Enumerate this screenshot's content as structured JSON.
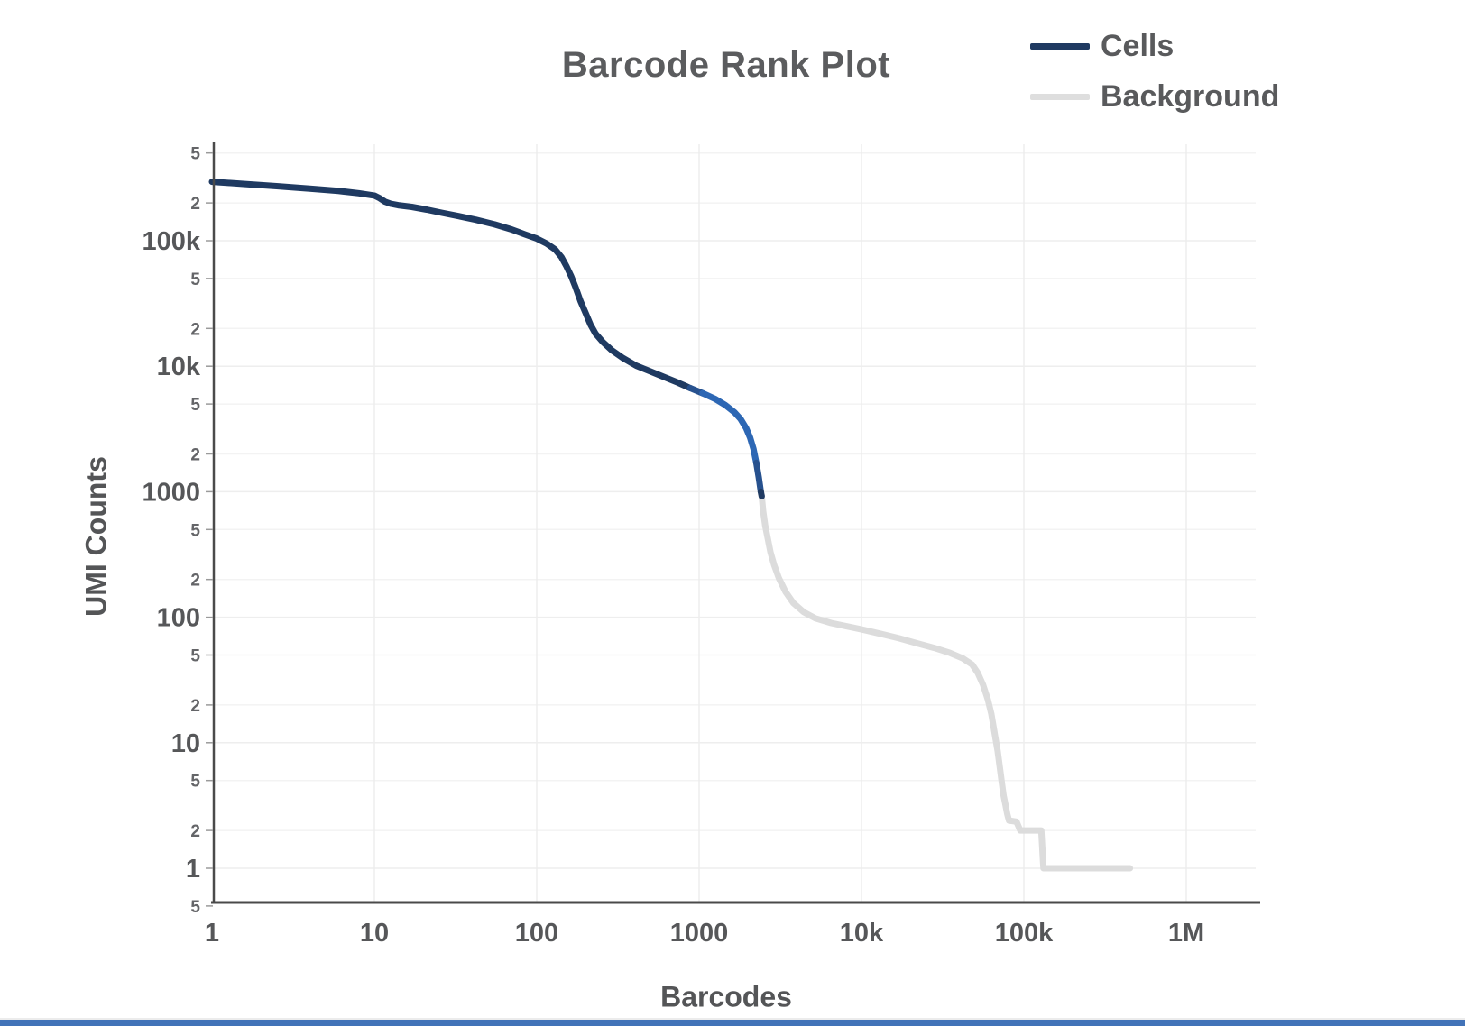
{
  "chart_data": {
    "type": "line",
    "title": "Barcode Rank Plot",
    "xlabel": "Barcodes",
    "ylabel": "UMI Counts",
    "x_scale": "log",
    "y_scale": "log",
    "x_range": [
      1,
      2600000
    ],
    "y_range": [
      0.5,
      590000
    ],
    "grid": {
      "h_minor_color": "#f3f3f3",
      "h_major_color": "#eeeeee",
      "v_color": "#ededed",
      "axis_color": "#4a4a4a",
      "tick_color": "#9a9a9a"
    },
    "legend": [
      {
        "label": "Cells",
        "color": "#1f3a61"
      },
      {
        "label": "Background",
        "color": "#dedede"
      }
    ],
    "x_ticks": [
      {
        "value": 1,
        "label": "1"
      },
      {
        "value": 10,
        "label": "10"
      },
      {
        "value": 100,
        "label": "100"
      },
      {
        "value": 1000,
        "label": "1000"
      },
      {
        "value": 10000,
        "label": "10k"
      },
      {
        "value": 100000,
        "label": "100k"
      },
      {
        "value": 1000000,
        "label": "1M"
      }
    ],
    "y_ticks": [
      {
        "value": 500000,
        "label": "5",
        "minor": true
      },
      {
        "value": 200000,
        "label": "2",
        "minor": true
      },
      {
        "value": 100000,
        "label": "100k",
        "minor": false
      },
      {
        "value": 50000,
        "label": "5",
        "minor": true
      },
      {
        "value": 20000,
        "label": "2",
        "minor": true
      },
      {
        "value": 10000,
        "label": "10k",
        "minor": false
      },
      {
        "value": 5000,
        "label": "5",
        "minor": true
      },
      {
        "value": 2000,
        "label": "2",
        "minor": true
      },
      {
        "value": 1000,
        "label": "1000",
        "minor": false
      },
      {
        "value": 500,
        "label": "5",
        "minor": true
      },
      {
        "value": 200,
        "label": "2",
        "minor": true
      },
      {
        "value": 100,
        "label": "100",
        "minor": false
      },
      {
        "value": 50,
        "label": "5",
        "minor": true
      },
      {
        "value": 20,
        "label": "2",
        "minor": true
      },
      {
        "value": 10,
        "label": "10",
        "minor": false
      },
      {
        "value": 5,
        "label": "5",
        "minor": true
      },
      {
        "value": 2,
        "label": "2",
        "minor": true
      },
      {
        "value": 1,
        "label": "1",
        "minor": false
      },
      {
        "value": 0.5,
        "label": "5",
        "minor": true
      }
    ],
    "series": [
      {
        "name": "Cells",
        "line_width": 7,
        "segments": [
          {
            "to_rank": 760,
            "color": "#1f3a61"
          },
          {
            "to_rank": 1050,
            "color": "#27518e"
          },
          {
            "to_rank": 2180,
            "color": "#2d67b4"
          },
          {
            "to_rank": 2340,
            "color": "#27518e"
          },
          {
            "to_rank": 2430,
            "color": "#203a61"
          }
        ],
        "points": [
          [
            1,
            295000
          ],
          [
            1.6,
            283000
          ],
          [
            2.5,
            272000
          ],
          [
            4,
            260000
          ],
          [
            6,
            249000
          ],
          [
            8,
            239000
          ],
          [
            10,
            229000
          ],
          [
            10.8,
            218000
          ],
          [
            11.6,
            205000
          ],
          [
            12.6,
            197000
          ],
          [
            14,
            192000
          ],
          [
            17,
            186000
          ],
          [
            21,
            177000
          ],
          [
            26,
            167000
          ],
          [
            33,
            157000
          ],
          [
            42,
            147000
          ],
          [
            55,
            135000
          ],
          [
            70,
            123000
          ],
          [
            85,
            112000
          ],
          [
            100,
            104000
          ],
          [
            115,
            95000
          ],
          [
            130,
            85000
          ],
          [
            142,
            74000
          ],
          [
            152,
            63000
          ],
          [
            163,
            52000
          ],
          [
            174,
            42000
          ],
          [
            186,
            33000
          ],
          [
            200,
            26500
          ],
          [
            214,
            21500
          ],
          [
            230,
            18200
          ],
          [
            255,
            15600
          ],
          [
            290,
            13400
          ],
          [
            340,
            11600
          ],
          [
            410,
            10100
          ],
          [
            500,
            9100
          ],
          [
            610,
            8200
          ],
          [
            740,
            7400
          ],
          [
            880,
            6700
          ],
          [
            1050,
            6100
          ],
          [
            1250,
            5500
          ],
          [
            1450,
            4900
          ],
          [
            1650,
            4300
          ],
          [
            1800,
            3800
          ],
          [
            1950,
            3200
          ],
          [
            2060,
            2700
          ],
          [
            2160,
            2200
          ],
          [
            2250,
            1700
          ],
          [
            2330,
            1300
          ],
          [
            2400,
            1000
          ],
          [
            2430,
            920
          ]
        ]
      },
      {
        "name": "Background",
        "color": "#dcdcdc",
        "line_width": 7,
        "points": [
          [
            2430,
            920
          ],
          [
            2480,
            700
          ],
          [
            2550,
            540
          ],
          [
            2650,
            420
          ],
          [
            2750,
            330
          ],
          [
            2900,
            260
          ],
          [
            3100,
            205
          ],
          [
            3400,
            160
          ],
          [
            3800,
            130
          ],
          [
            4400,
            110
          ],
          [
            5200,
            98
          ],
          [
            6500,
            90
          ],
          [
            8000,
            85
          ],
          [
            10000,
            80
          ],
          [
            13000,
            74
          ],
          [
            17000,
            68
          ],
          [
            22000,
            62
          ],
          [
            28000,
            57
          ],
          [
            35000,
            52
          ],
          [
            42000,
            47
          ],
          [
            48000,
            42
          ],
          [
            52000,
            36
          ],
          [
            56000,
            29
          ],
          [
            60000,
            22
          ],
          [
            63000,
            17
          ],
          [
            66000,
            12
          ],
          [
            69000,
            8.5
          ],
          [
            71500,
            6
          ],
          [
            73500,
            4.6
          ],
          [
            75000,
            3.8
          ],
          [
            77000,
            3.2
          ],
          [
            79000,
            2.7
          ],
          [
            81000,
            2.4
          ],
          [
            90000,
            2.35
          ],
          [
            95000,
            2.0
          ],
          [
            128000,
            2.0
          ],
          [
            132000,
            1.0
          ],
          [
            450000,
            1.0
          ]
        ]
      }
    ]
  },
  "footer": {
    "bar_color": "#4273b8"
  }
}
